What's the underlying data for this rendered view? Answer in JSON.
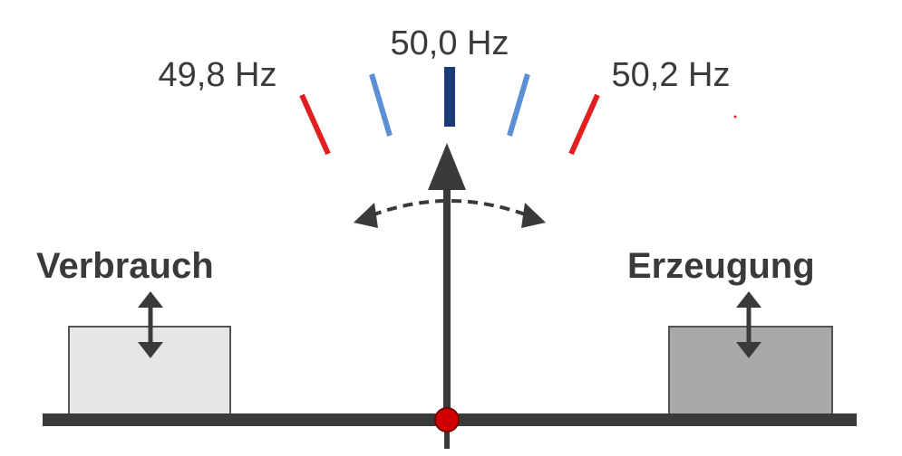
{
  "labels": {
    "freq_low": "49,8 Hz",
    "freq_nominal": "50,0 Hz",
    "freq_high": "50,2 Hz",
    "consumption": "Verbrauch",
    "generation": "Erzeugung"
  },
  "colors": {
    "limit_tick": "#e02020",
    "near_tick": "#5b8fd6",
    "nominal_tick": "#1a3a78",
    "pointer": "#3a3a3a",
    "pivot": "#d10000",
    "consumption_box": "#e6e6e6",
    "generation_box": "#a9a9a9",
    "beam": "#3a3a3a"
  },
  "icons": {
    "pointer": "arrow-up-icon",
    "swing": "curved-double-arrow-icon",
    "consumption_adjust": "up-down-arrow-icon",
    "generation_adjust": "up-down-arrow-icon",
    "pivot": "pivot-dot-icon"
  }
}
